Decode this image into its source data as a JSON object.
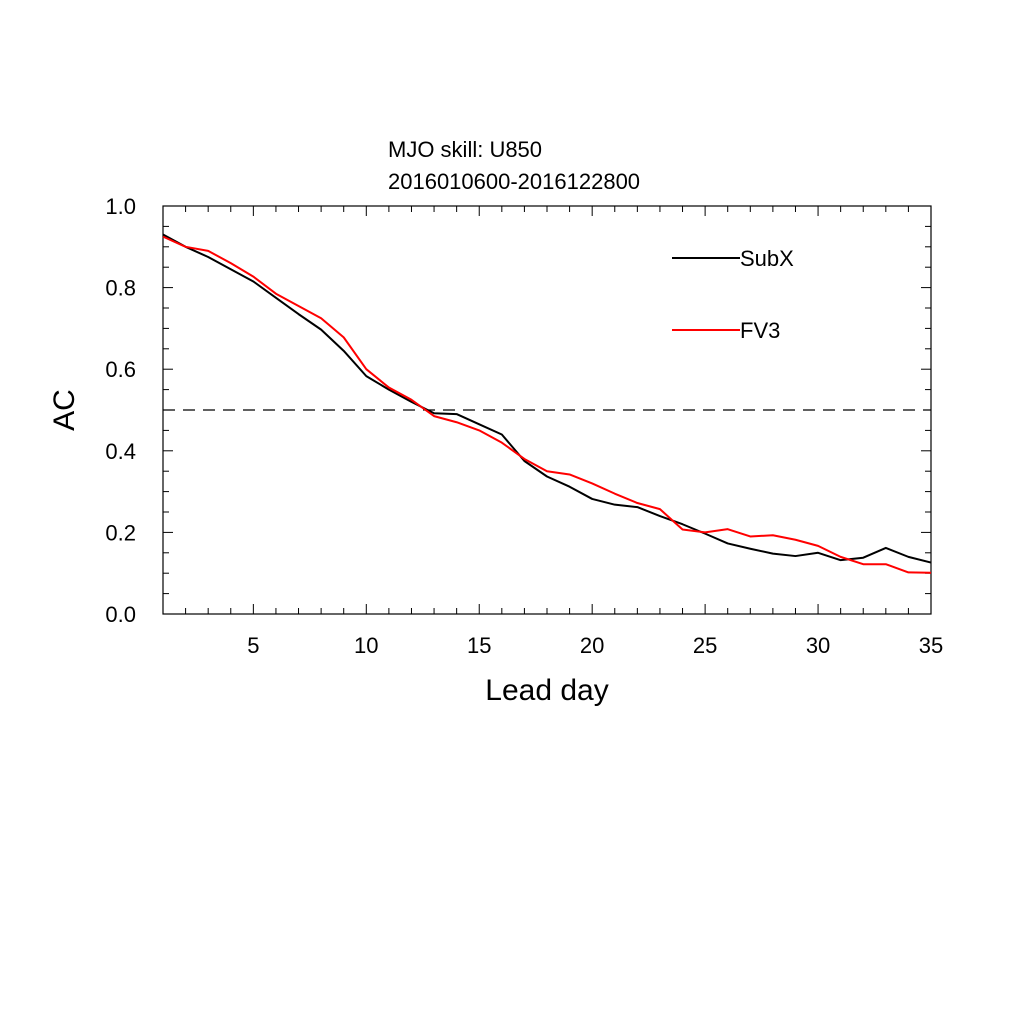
{
  "chart_data": {
    "type": "line",
    "title": "MJO skill: U850",
    "subtitle": "2016010600-2016122800",
    "xlabel": "Lead day",
    "ylabel": "AC",
    "xlim": [
      1,
      35
    ],
    "ylim": [
      0.0,
      1.0
    ],
    "xticks": [
      5,
      10,
      15,
      20,
      25,
      30,
      35
    ],
    "xtick_labels": [
      "5",
      "10",
      "15",
      "20",
      "25",
      "30",
      "35"
    ],
    "yticks": [
      0.0,
      0.2,
      0.4,
      0.6,
      0.8,
      1.0
    ],
    "ytick_labels": [
      "0.0",
      "0.2",
      "0.4",
      "0.6",
      "0.8",
      "1.0"
    ],
    "reference_line": {
      "y": 0.5,
      "style": "dashed"
    },
    "grid": false,
    "legend_position": "top-right",
    "x": [
      1,
      2,
      3,
      4,
      5,
      6,
      7,
      8,
      9,
      10,
      11,
      12,
      13,
      14,
      15,
      16,
      17,
      18,
      19,
      20,
      21,
      22,
      23,
      24,
      25,
      26,
      27,
      28,
      29,
      30,
      31,
      32,
      33,
      34,
      35
    ],
    "series": [
      {
        "name": "SubX",
        "color": "#000000",
        "values": [
          0.93,
          0.9,
          0.875,
          0.845,
          0.815,
          0.775,
          0.735,
          0.697,
          0.645,
          0.583,
          0.55,
          0.52,
          0.492,
          0.49,
          0.465,
          0.44,
          0.375,
          0.337,
          0.312,
          0.282,
          0.268,
          0.262,
          0.24,
          0.22,
          0.197,
          0.173,
          0.16,
          0.148,
          0.142,
          0.15,
          0.132,
          0.138,
          0.162,
          0.14,
          0.126
        ]
      },
      {
        "name": "FV3",
        "color": "#ff0000",
        "values": [
          0.925,
          0.9,
          0.89,
          0.86,
          0.827,
          0.785,
          0.755,
          0.725,
          0.678,
          0.6,
          0.555,
          0.525,
          0.485,
          0.47,
          0.45,
          0.42,
          0.38,
          0.35,
          0.342,
          0.32,
          0.295,
          0.272,
          0.257,
          0.207,
          0.2,
          0.208,
          0.19,
          0.193,
          0.182,
          0.167,
          0.14,
          0.122,
          0.122,
          0.102,
          0.101
        ]
      }
    ]
  }
}
